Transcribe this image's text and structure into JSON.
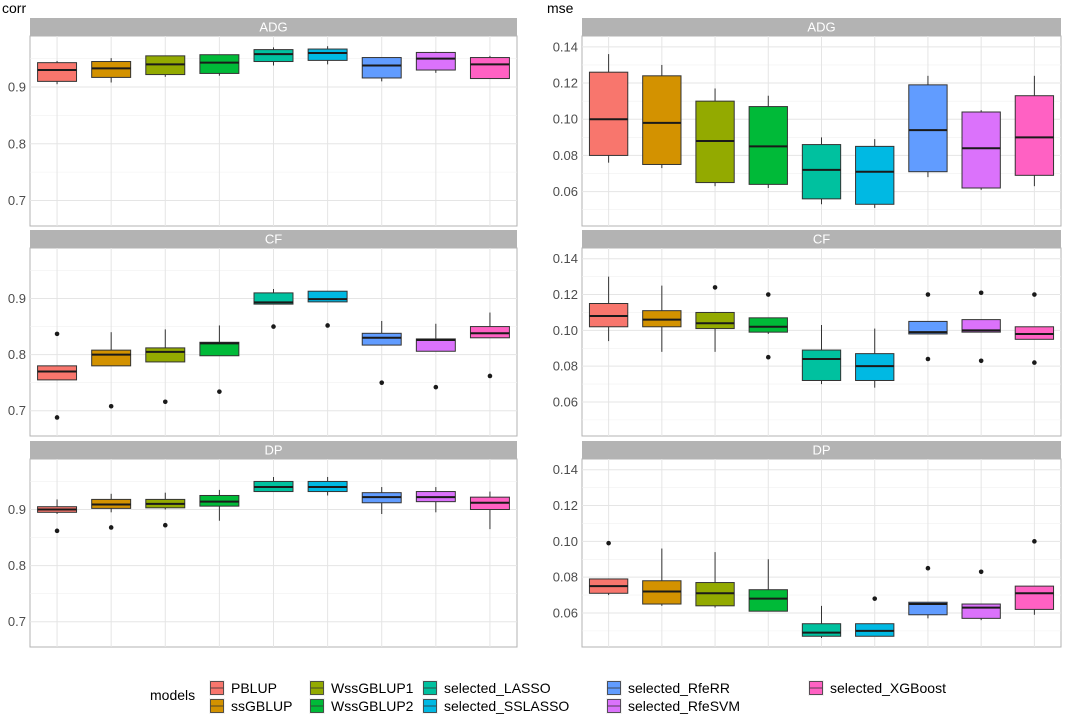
{
  "chart_data": {
    "type": "boxplot",
    "legend": {
      "title": "models",
      "position": "bottom",
      "entries": [
        "PBLUP",
        "ssGBLUP",
        "WssGBLUP1",
        "WssGBLUP2",
        "selected_LASSO",
        "selected_SSLASSO",
        "selected_RfeRR",
        "selected_RfeSVM",
        "selected_XGBoost"
      ]
    },
    "colors": [
      "#F8766D",
      "#D39200",
      "#93AA00",
      "#00BA38",
      "#00C19F",
      "#00B9E3",
      "#619CFF",
      "#DB72FB",
      "#FF61C3"
    ],
    "facets": [
      "ADG",
      "CF",
      "DP"
    ],
    "panels": [
      {
        "title": "corr",
        "ylim": [
          0.655,
          0.99
        ],
        "yticks": [
          0.7,
          0.8,
          0.9
        ],
        "ytick_labels": [
          "0.7",
          "0.8",
          "0.9"
        ],
        "facets": {
          "ADG": [
            [
              0.905,
              0.91,
              0.93,
              0.943,
              0.946,
              []
            ],
            [
              0.908,
              0.917,
              0.933,
              0.945,
              0.951,
              []
            ],
            [
              0.918,
              0.922,
              0.94,
              0.955,
              0.955,
              []
            ],
            [
              0.92,
              0.924,
              0.943,
              0.957,
              0.957,
              []
            ],
            [
              0.938,
              0.945,
              0.958,
              0.966,
              0.97,
              []
            ],
            [
              0.94,
              0.947,
              0.96,
              0.967,
              0.972,
              []
            ],
            [
              0.91,
              0.916,
              0.938,
              0.952,
              0.952,
              []
            ],
            [
              0.925,
              0.93,
              0.95,
              0.961,
              0.962,
              []
            ],
            [
              0.915,
              0.915,
              0.94,
              0.952,
              0.955,
              []
            ]
          ],
          "CF": [
            [
              0.755,
              0.755,
              0.77,
              0.78,
              0.78,
              [
                0.688,
                0.837
              ]
            ],
            [
              0.78,
              0.78,
              0.8,
              0.808,
              0.84,
              [
                0.708
              ]
            ],
            [
              0.787,
              0.787,
              0.805,
              0.812,
              0.845,
              [
                0.716
              ]
            ],
            [
              0.798,
              0.798,
              0.82,
              0.822,
              0.852,
              [
                0.734
              ]
            ],
            [
              0.89,
              0.89,
              0.893,
              0.91,
              0.917,
              [
                0.85
              ]
            ],
            [
              0.894,
              0.894,
              0.899,
              0.913,
              0.913,
              [
                0.852
              ]
            ],
            [
              0.817,
              0.817,
              0.83,
              0.838,
              0.86,
              [
                0.75
              ]
            ],
            [
              0.806,
              0.806,
              0.826,
              0.828,
              0.855,
              [
                0.742
              ]
            ],
            [
              0.83,
              0.83,
              0.838,
              0.85,
              0.875,
              [
                0.762
              ]
            ]
          ],
          "DP": [
            [
              0.892,
              0.895,
              0.9,
              0.905,
              0.918,
              [
                0.862
              ]
            ],
            [
              0.895,
              0.902,
              0.909,
              0.918,
              0.928,
              [
                0.868
              ]
            ],
            [
              0.9,
              0.903,
              0.91,
              0.918,
              0.93,
              [
                0.872
              ]
            ],
            [
              0.88,
              0.906,
              0.914,
              0.925,
              0.935,
              []
            ],
            [
              0.932,
              0.932,
              0.94,
              0.95,
              0.958,
              []
            ],
            [
              0.925,
              0.932,
              0.94,
              0.95,
              0.958,
              []
            ],
            [
              0.892,
              0.912,
              0.922,
              0.93,
              0.94,
              []
            ],
            [
              0.895,
              0.914,
              0.922,
              0.932,
              0.94,
              []
            ],
            [
              0.865,
              0.9,
              0.912,
              0.922,
              0.932,
              []
            ]
          ]
        }
      },
      {
        "title": "mse",
        "ylim": [
          0.041,
          0.146
        ],
        "yticks": [
          0.06,
          0.08,
          0.1,
          0.12,
          0.14
        ],
        "ytick_labels": [
          "0.06",
          "0.08",
          "0.10",
          "0.12",
          "0.14"
        ],
        "facets": {
          "ADG": [
            [
              0.076,
              0.08,
              0.1,
              0.126,
              0.136,
              []
            ],
            [
              0.073,
              0.075,
              0.098,
              0.124,
              0.13,
              []
            ],
            [
              0.063,
              0.065,
              0.088,
              0.11,
              0.117,
              []
            ],
            [
              0.062,
              0.064,
              0.085,
              0.107,
              0.113,
              []
            ],
            [
              0.053,
              0.056,
              0.072,
              0.086,
              0.09,
              []
            ],
            [
              0.051,
              0.053,
              0.071,
              0.085,
              0.089,
              []
            ],
            [
              0.068,
              0.071,
              0.094,
              0.119,
              0.124,
              []
            ],
            [
              0.061,
              0.062,
              0.084,
              0.104,
              0.105,
              []
            ],
            [
              0.063,
              0.069,
              0.09,
              0.113,
              0.124,
              []
            ]
          ],
          "CF": [
            [
              0.094,
              0.102,
              0.108,
              0.115,
              0.13,
              []
            ],
            [
              0.088,
              0.102,
              0.106,
              0.111,
              0.125,
              []
            ],
            [
              0.088,
              0.101,
              0.104,
              0.11,
              0.11,
              [
                0.124
              ]
            ],
            [
              0.098,
              0.099,
              0.102,
              0.107,
              0.107,
              [
                0.12,
                0.085
              ]
            ],
            [
              0.07,
              0.072,
              0.084,
              0.089,
              0.103,
              []
            ],
            [
              0.068,
              0.072,
              0.08,
              0.087,
              0.101,
              []
            ],
            [
              0.098,
              0.098,
              0.099,
              0.105,
              0.105,
              [
                0.12,
                0.084
              ]
            ],
            [
              0.099,
              0.099,
              0.1,
              0.106,
              0.106,
              [
                0.121,
                0.083
              ]
            ],
            [
              0.095,
              0.095,
              0.098,
              0.102,
              0.102,
              [
                0.12,
                0.082
              ]
            ]
          ],
          "DP": [
            [
              0.07,
              0.071,
              0.075,
              0.079,
              0.079,
              [
                0.099
              ]
            ],
            [
              0.064,
              0.065,
              0.072,
              0.078,
              0.096,
              []
            ],
            [
              0.063,
              0.064,
              0.071,
              0.077,
              0.094,
              []
            ],
            [
              0.061,
              0.061,
              0.068,
              0.073,
              0.09,
              []
            ],
            [
              0.046,
              0.047,
              0.049,
              0.054,
              0.064,
              []
            ],
            [
              0.047,
              0.047,
              0.05,
              0.054,
              0.054,
              [
                0.068
              ]
            ],
            [
              0.057,
              0.059,
              0.065,
              0.066,
              0.066,
              [
                0.085
              ]
            ],
            [
              0.056,
              0.057,
              0.063,
              0.065,
              0.065,
              [
                0.083
              ]
            ],
            [
              0.059,
              0.062,
              0.071,
              0.075,
              0.075,
              [
                0.1
              ]
            ]
          ]
        }
      }
    ]
  }
}
